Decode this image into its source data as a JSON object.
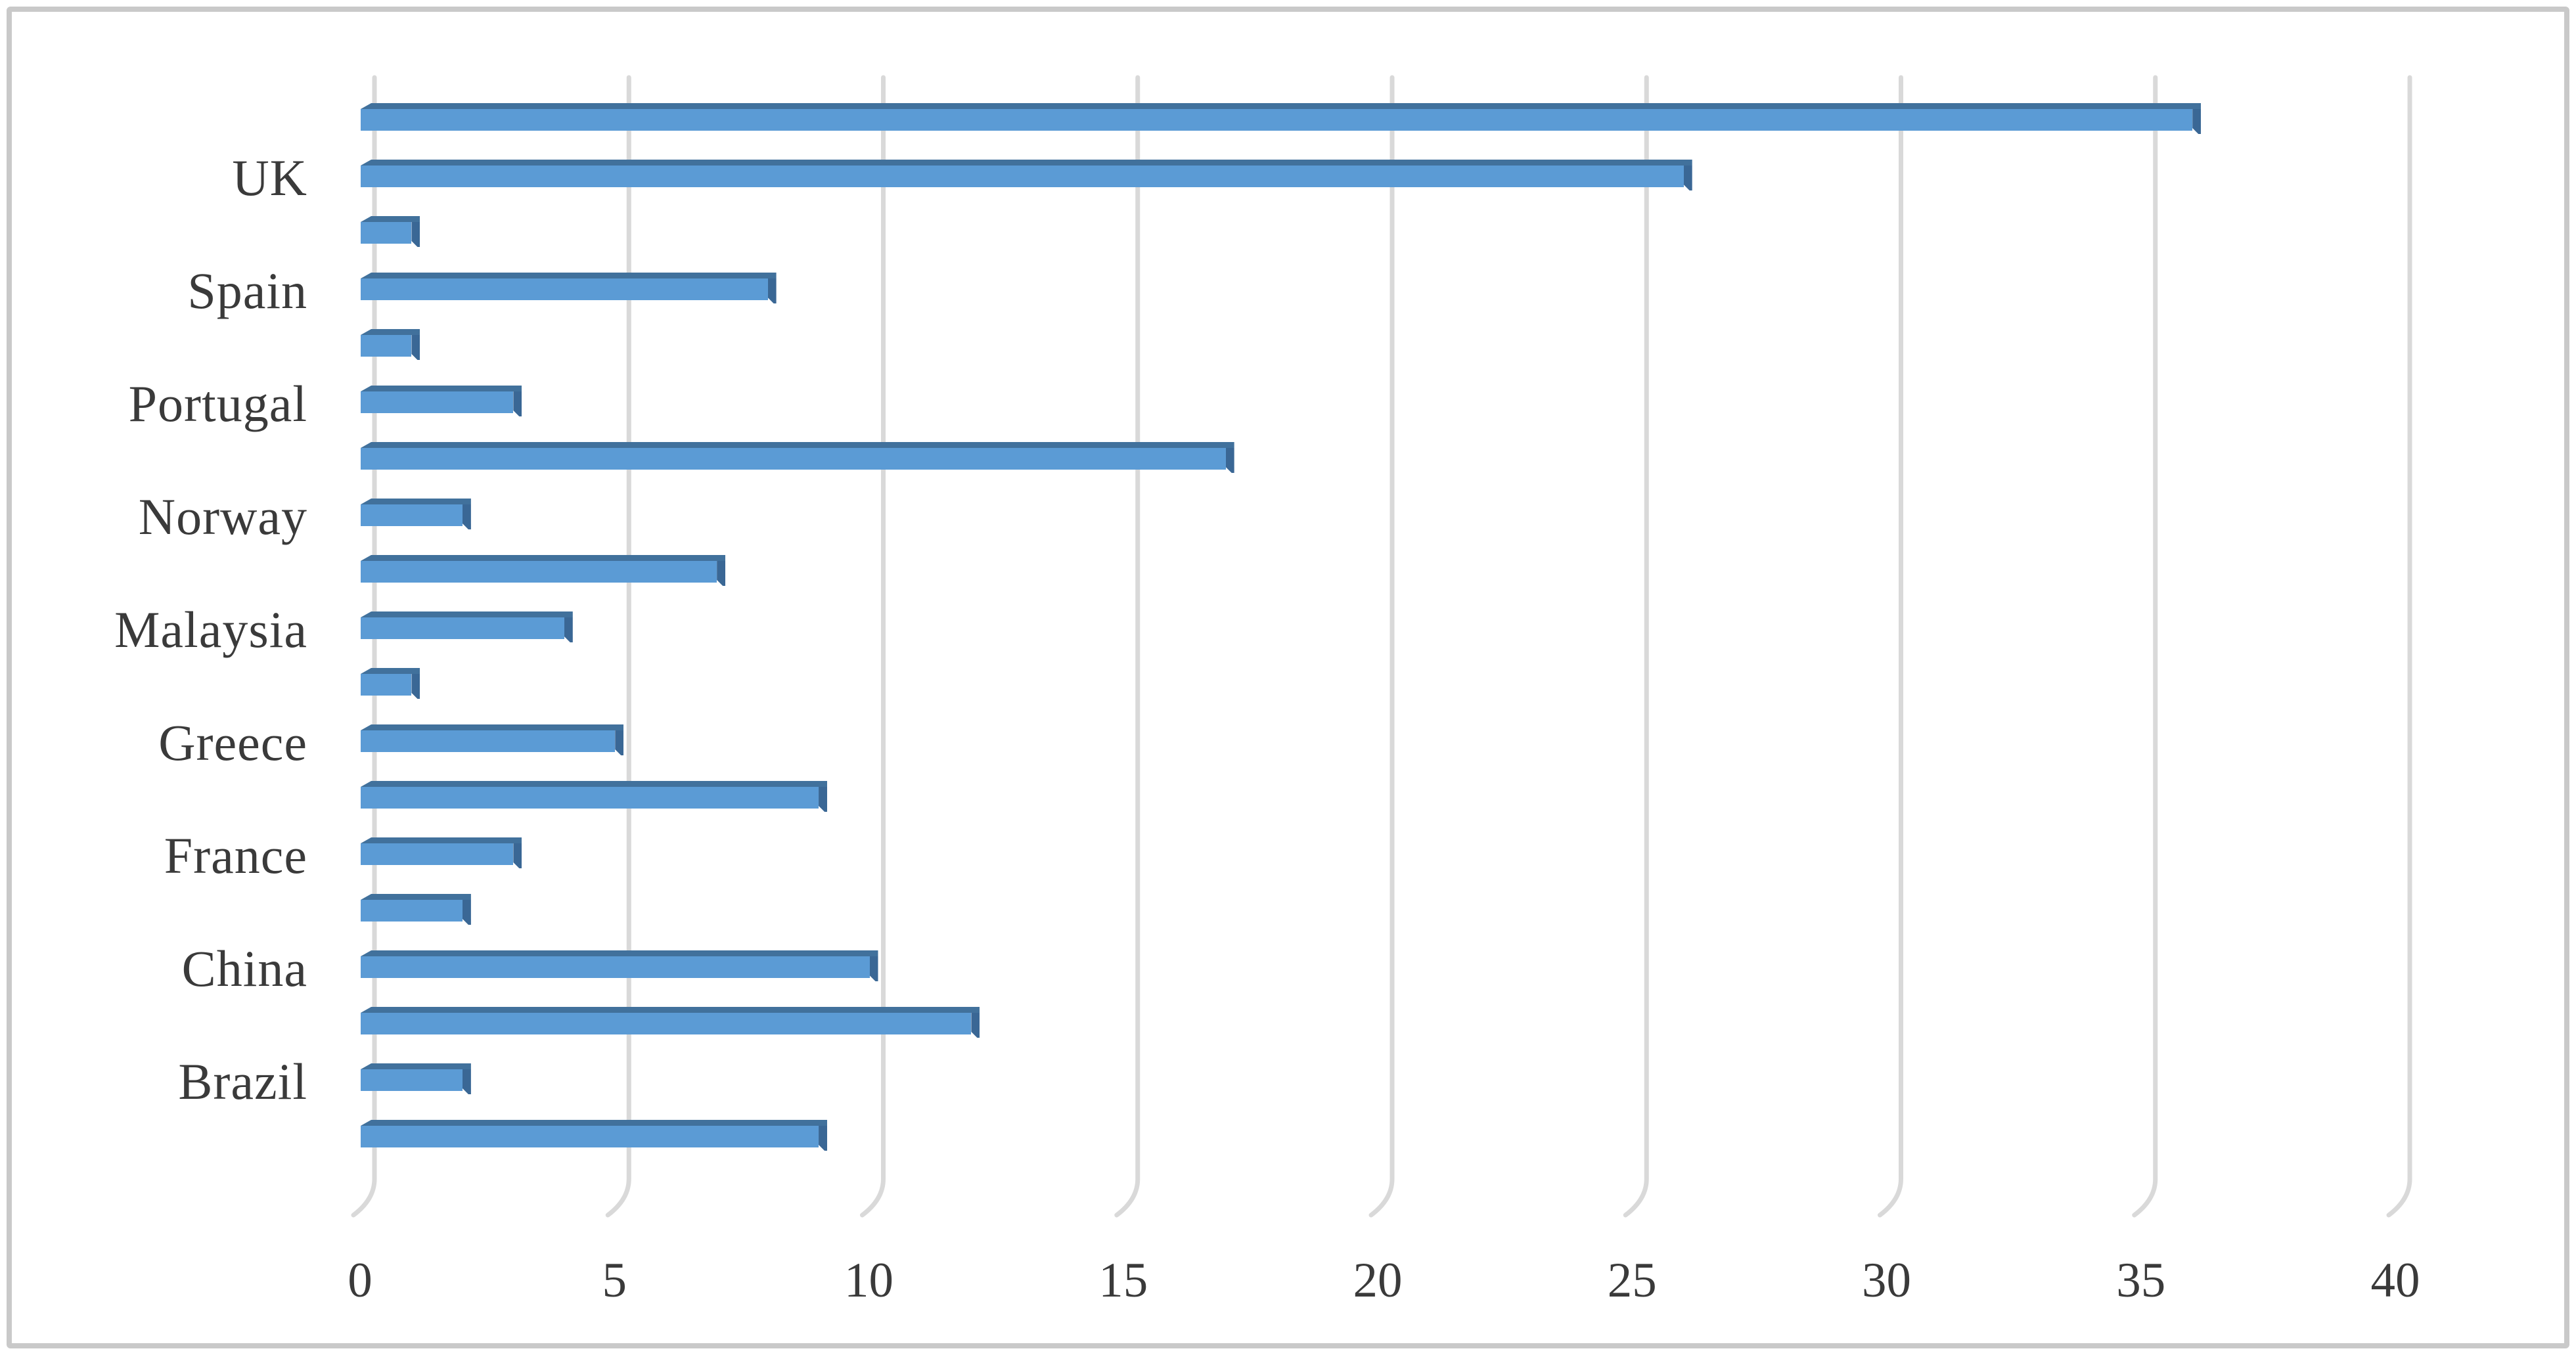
{
  "figure": {
    "background_color": "#FFFFFF",
    "border_color": "#C9C9C9"
  },
  "chart_data": {
    "type": "bar",
    "orientation": "horizontal",
    "title": "",
    "xlabel": "",
    "ylabel": "",
    "legend": null,
    "grid": true,
    "gridline_color": "#D9D9D9",
    "bar_color": "#5B9BD5",
    "bar_bevel_color": "#41719C",
    "bar_cap_color": "#3A6795",
    "text_color": "#3A3A3A",
    "x_axis": {
      "min": 0,
      "max": 40,
      "tick_step": 5,
      "ticks": [
        "0",
        "5",
        "10",
        "15",
        "20",
        "25",
        "30",
        "35",
        "40"
      ]
    },
    "visible_category_labels": [
      "UK",
      "Spain",
      "Portugal",
      "Norway",
      "Malaysia",
      "Greece",
      "France",
      "China",
      "Brazil"
    ],
    "rows": [
      {
        "label": "",
        "value": 36
      },
      {
        "label": "UK",
        "value": 26
      },
      {
        "label": "",
        "value": 1
      },
      {
        "label": "Spain",
        "value": 8
      },
      {
        "label": "",
        "value": 1
      },
      {
        "label": "Portugal",
        "value": 3
      },
      {
        "label": "",
        "value": 17
      },
      {
        "label": "Norway",
        "value": 2
      },
      {
        "label": "",
        "value": 7
      },
      {
        "label": "Malaysia",
        "value": 4
      },
      {
        "label": "",
        "value": 1
      },
      {
        "label": "Greece",
        "value": 5
      },
      {
        "label": "",
        "value": 9
      },
      {
        "label": "France",
        "value": 3
      },
      {
        "label": "",
        "value": 2
      },
      {
        "label": "China",
        "value": 10
      },
      {
        "label": "",
        "value": 12
      },
      {
        "label": "Brazil",
        "value": 2
      },
      {
        "label": "",
        "value": 9
      }
    ]
  }
}
